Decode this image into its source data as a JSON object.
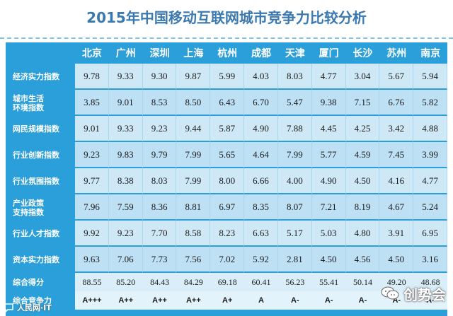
{
  "title": "2015年中国移动互联网城市竞争力比较分析",
  "cities": [
    "北京",
    "广州",
    "深圳",
    "上海",
    "杭州",
    "成都",
    "天津",
    "厦门",
    "长沙",
    "苏州",
    "南京"
  ],
  "rows": [
    {
      "label": [
        "经济实力指数"
      ],
      "values": [
        "9.78",
        "9.33",
        "9.30",
        "9.87",
        "5.99",
        "4.03",
        "8.03",
        "4.77",
        "3.04",
        "5.67",
        "5.94"
      ]
    },
    {
      "label": [
        "城市生活",
        "环境指数"
      ],
      "values": [
        "3.85",
        "9.01",
        "8.53",
        "8.50",
        "6.43",
        "6.70",
        "5.47",
        "9.38",
        "7.15",
        "6.76",
        "5.82"
      ]
    },
    {
      "label": [
        "网民规模指数"
      ],
      "values": [
        "9.01",
        "9.33",
        "9.23",
        "9.44",
        "5.87",
        "4.90",
        "7.88",
        "4.45",
        "4.25",
        "3.42",
        "4.88"
      ]
    },
    {
      "label": [
        "行业创新指数"
      ],
      "values": [
        "9.23",
        "9.83",
        "9.79",
        "7.99",
        "5.65",
        "4.64",
        "7.99",
        "5.77",
        "4.59",
        "7.45",
        "3.99"
      ]
    },
    {
      "label": [
        "行业氛围指数"
      ],
      "values": [
        "9.77",
        "8.38",
        "8.03",
        "7.99",
        "8.00",
        "6.66",
        "4.00",
        "4.90",
        "4.50",
        "4.16",
        "4.77"
      ]
    },
    {
      "label": [
        "产业政策",
        "支持指数"
      ],
      "values": [
        "7.96",
        "7.59",
        "8.36",
        "8.81",
        "6.97",
        "8.35",
        "8.07",
        "7.21",
        "8.19",
        "4.67",
        "5.24"
      ]
    },
    {
      "label": [
        "行业人才指数"
      ],
      "values": [
        "9.92",
        "9.23",
        "7.70",
        "8.58",
        "8.23",
        "6.63",
        "5.17",
        "5.03",
        "4.80",
        "3.91",
        "6.95"
      ]
    },
    {
      "label": [
        "资本实力指数"
      ],
      "values": [
        "9.63",
        "7.06",
        "7.73",
        "7.56",
        "7.02",
        "5.92",
        "2.81",
        "4.50",
        "4.56",
        "4.50",
        "3.16"
      ]
    }
  ],
  "summary": {
    "label": "综合得分",
    "values": [
      "88.55",
      "85.20",
      "84.43",
      "84.29",
      "69.18",
      "60.41",
      "56.23",
      "55.41",
      "50.14",
      "49.20",
      "48.68"
    ]
  },
  "grade": {
    "label": "综合竞争力",
    "values": [
      "A+++",
      "A++",
      "A++",
      "A++",
      "A+",
      "A",
      "A-",
      "A-",
      "A-",
      "A-",
      "A-"
    ]
  },
  "watermark": {
    "text": "创势会",
    "icon": "wechat-icon"
  },
  "corner_logo": {
    "text": "人民网·IT",
    "icon": "speech-bubble-icon"
  },
  "colors": {
    "table_bg": "#2b9fd9",
    "title": "#3a78b0",
    "cell": "#cfe8f6"
  }
}
